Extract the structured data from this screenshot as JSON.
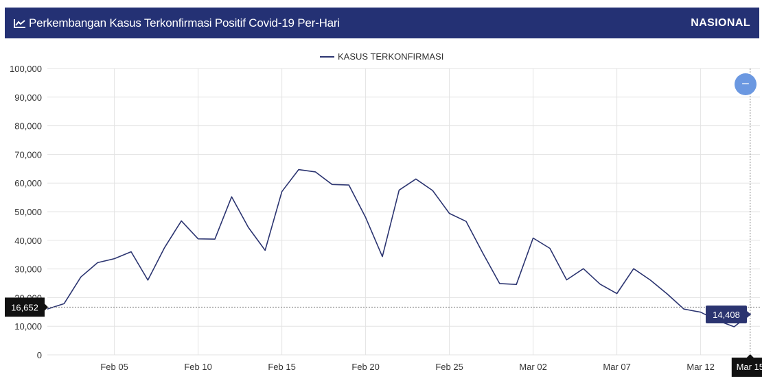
{
  "header": {
    "title": "Perkembangan Kasus Terkonfirmasi Positif Covid-19 Per-Hari",
    "region": "NASIONAL",
    "icon": "line-chart-icon"
  },
  "zoom_button": {
    "label": "−",
    "icon": "minus-icon"
  },
  "colors": {
    "header_bg": "#243174",
    "line": "#2b3470",
    "grid": "#e3e3e3",
    "zoom": "#6b98e1"
  },
  "chart_data": {
    "type": "line",
    "title": "",
    "legend": {
      "position": "top-center"
    },
    "xlabel": "",
    "ylabel": "",
    "ylim": [
      0,
      100000
    ],
    "yticks": [
      "100,000",
      "90,000",
      "80,000",
      "70,000",
      "60,000",
      "50,000",
      "40,000",
      "30,000",
      "20,000",
      "10,000",
      "0"
    ],
    "xticks": [
      "Feb 05",
      "Feb 10",
      "Feb 15",
      "Feb 20",
      "Feb 25",
      "Mar 02",
      "Mar 07",
      "Mar 12",
      "Mar 15"
    ],
    "grid": true,
    "crosshair": {
      "y_value": 16652,
      "y_label": "16,652",
      "x_label": "Mar 15",
      "point_label": "14,408"
    },
    "series": [
      {
        "name": "KASUS TERKONFIRMASI",
        "x": [
          "Feb 01",
          "Feb 02",
          "Feb 03",
          "Feb 04",
          "Feb 05",
          "Feb 06",
          "Feb 07",
          "Feb 08",
          "Feb 09",
          "Feb 10",
          "Feb 11",
          "Feb 12",
          "Feb 13",
          "Feb 14",
          "Feb 15",
          "Feb 16",
          "Feb 17",
          "Feb 18",
          "Feb 19",
          "Feb 20",
          "Feb 21",
          "Feb 22",
          "Feb 23",
          "Feb 24",
          "Feb 25",
          "Feb 26",
          "Feb 27",
          "Feb 28",
          "Mar 01",
          "Mar 02",
          "Mar 03",
          "Mar 04",
          "Mar 05",
          "Mar 06",
          "Mar 07",
          "Mar 08",
          "Mar 09",
          "Mar 10",
          "Mar 11",
          "Mar 12",
          "Mar 13",
          "Mar 14",
          "Mar 15"
        ],
        "values": [
          16000,
          17900,
          27200,
          32200,
          33600,
          36000,
          26100,
          37500,
          46800,
          40500,
          40400,
          55200,
          44500,
          36500,
          57000,
          64700,
          63900,
          59500,
          59300,
          48000,
          34300,
          57500,
          61400,
          57400,
          49400,
          46600,
          35500,
          24900,
          24600,
          40800,
          37200,
          26200,
          30100,
          24700,
          21400,
          30100,
          26100,
          21300,
          16000,
          14900,
          12000,
          9800,
          14408
        ]
      }
    ]
  }
}
